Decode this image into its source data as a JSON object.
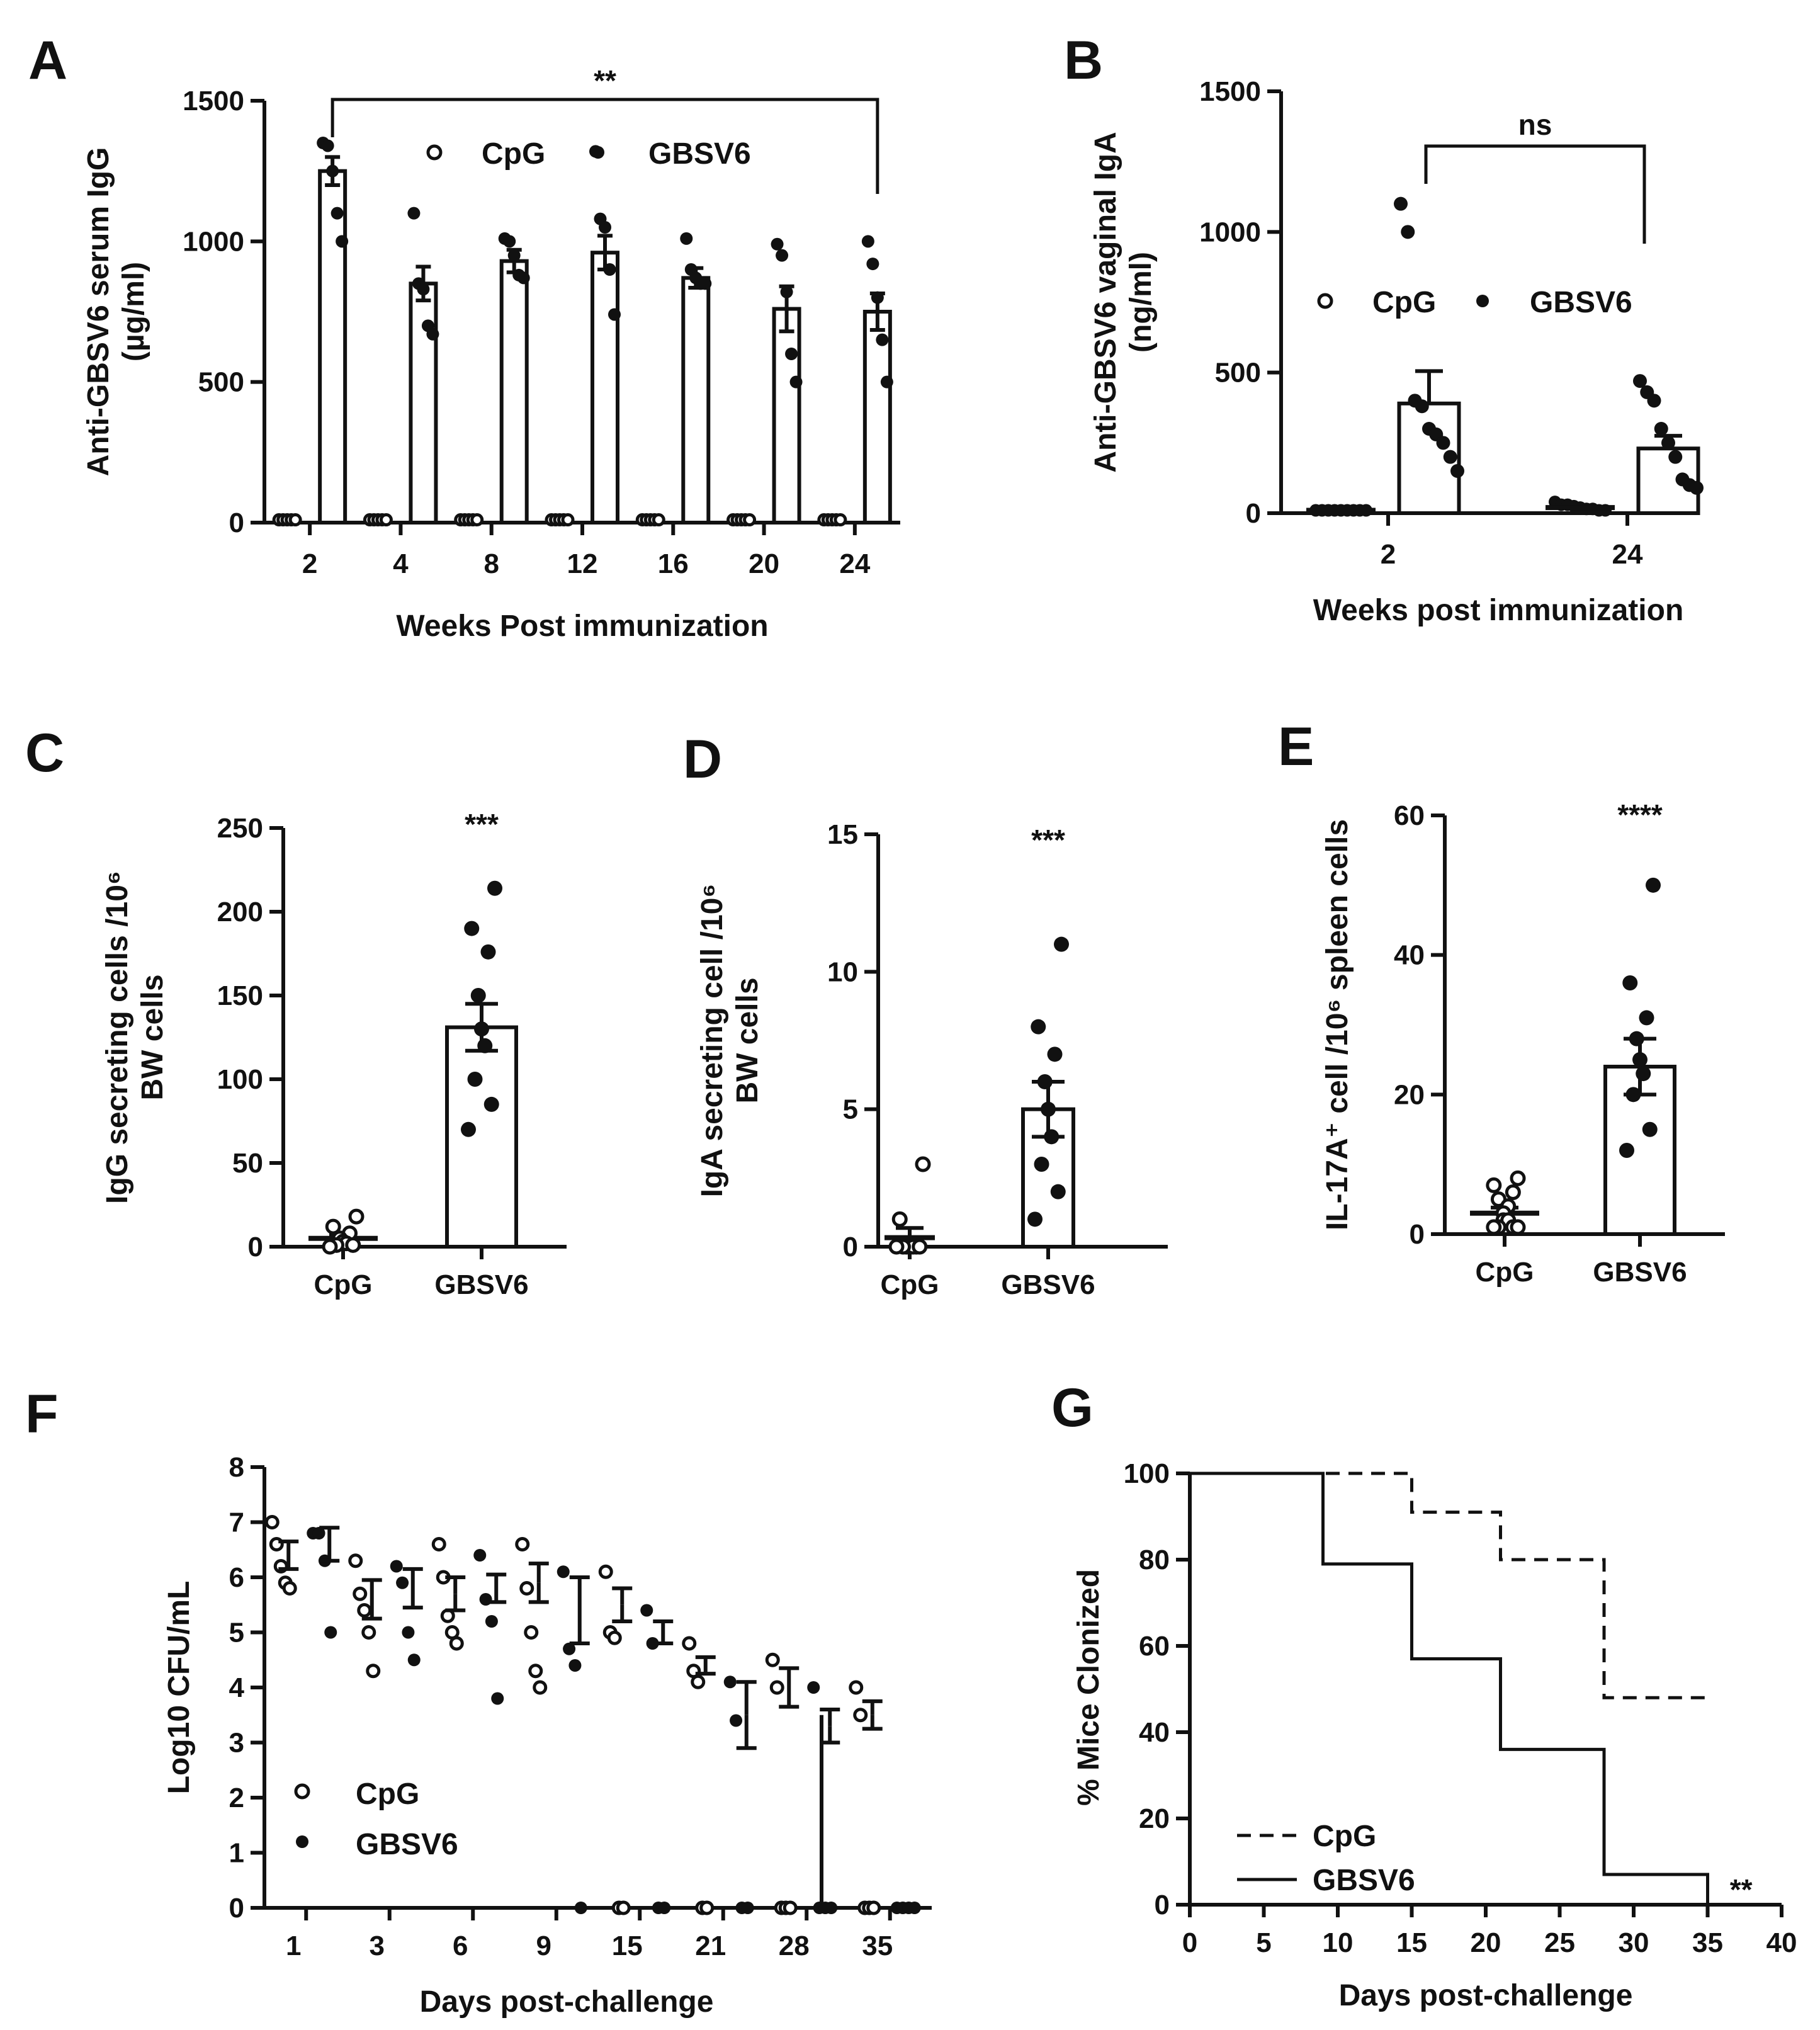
{
  "figure_title": "Multi-panel immunization figure",
  "chart_data": [
    {
      "panel": "A",
      "type": "bar",
      "ylabel": "Anti-GBSV6 serum IgG (µg/ml)",
      "xlabel": "Weeks Post immunization",
      "categories": [
        "2",
        "4",
        "8",
        "12",
        "16",
        "20",
        "24"
      ],
      "ylim": [
        0,
        1500
      ],
      "yticks": [
        0,
        500,
        1000,
        1500
      ],
      "legend": [
        "CpG",
        "GBSV6"
      ],
      "significance": {
        "label": "**",
        "from": "2",
        "to": "24"
      },
      "series": [
        {
          "name": "CpG",
          "values": [
            10,
            10,
            10,
            10,
            10,
            10,
            10
          ],
          "sem": [
            0,
            0,
            0,
            0,
            0,
            0,
            0
          ],
          "points": [
            [
              10,
              10,
              10,
              10,
              10
            ],
            [
              10,
              10,
              10,
              10,
              10
            ],
            [
              10,
              10,
              10,
              10,
              10
            ],
            [
              10,
              10,
              10,
              10,
              10
            ],
            [
              10,
              10,
              10,
              10,
              10
            ],
            [
              10,
              10,
              10,
              10,
              10
            ],
            [
              10,
              10,
              10,
              10,
              10
            ]
          ]
        },
        {
          "name": "GBSV6",
          "values": [
            1250,
            850,
            930,
            960,
            870,
            760,
            750
          ],
          "sem": [
            50,
            60,
            40,
            60,
            35,
            80,
            65
          ],
          "points": [
            [
              1350,
              1340,
              1250,
              1100,
              1000
            ],
            [
              1100,
              850,
              830,
              700,
              670
            ],
            [
              1010,
              1000,
              950,
              880,
              870
            ],
            [
              1320,
              1080,
              1050,
              900,
              740
            ],
            [
              1010,
              900,
              870,
              850,
              850
            ],
            [
              990,
              950,
              820,
              600,
              500
            ],
            [
              1000,
              920,
              800,
              650,
              500
            ]
          ]
        }
      ]
    },
    {
      "panel": "B",
      "type": "bar",
      "ylabel": "Anti-GBSV6 vaginal IgA (ng/ml)",
      "xlabel": "Weeks post immunization",
      "categories": [
        "2",
        "24"
      ],
      "ylim": [
        0,
        1500
      ],
      "yticks": [
        0,
        500,
        1000,
        1500
      ],
      "legend": [
        "CpG",
        "GBSV6"
      ],
      "significance": {
        "label": "ns",
        "from": "2",
        "to": "24"
      },
      "series": [
        {
          "name": "CpG",
          "values": [
            10,
            20
          ],
          "sem": [
            2,
            5
          ],
          "points": [
            [
              10,
              10,
              10,
              10,
              10,
              10,
              10,
              10,
              10
            ],
            [
              40,
              30,
              30,
              25,
              20,
              15,
              15,
              10,
              10
            ]
          ]
        },
        {
          "name": "GBSV6",
          "values": [
            390,
            230
          ],
          "sem": [
            115,
            45
          ],
          "points": [
            [
              1100,
              1000,
              400,
              380,
              300,
              280,
              250,
              200,
              150
            ],
            [
              470,
              430,
              400,
              300,
              250,
              200,
              120,
              100,
              90
            ]
          ]
        }
      ]
    },
    {
      "panel": "C",
      "type": "bar",
      "ylabel": "IgG secreting cells /10^6 BW cells",
      "categories": [
        "CpG",
        "GBSV6"
      ],
      "ylim": [
        0,
        250
      ],
      "yticks": [
        0,
        50,
        100,
        150,
        200,
        250
      ],
      "significance": {
        "label": "***"
      },
      "series": [
        {
          "name": "CpG",
          "values": [
            5,
            131
          ],
          "sem": [
            2,
            14
          ],
          "points": [
            [
              18,
              12,
              8,
              5,
              3,
              2,
              1,
              1,
              0
            ],
            [
              214,
              190,
              176,
              150,
              130,
              120,
              100,
              85,
              70
            ]
          ],
          "markers": [
            "open",
            "filled"
          ]
        }
      ]
    },
    {
      "panel": "D",
      "type": "bar",
      "ylabel": "IgA secreting cell /10^6 BW cells",
      "categories": [
        "CpG",
        "GBSV6"
      ],
      "ylim": [
        0,
        15
      ],
      "yticks": [
        0,
        5,
        10,
        15
      ],
      "significance": {
        "label": "***"
      },
      "series": [
        {
          "name": "CpG",
          "values": [
            0.33,
            5.0
          ],
          "sem": [
            0.35,
            1.0
          ],
          "points": [
            [
              3,
              1,
              0,
              0,
              0,
              0,
              0,
              0,
              0
            ],
            [
              11,
              8,
              7,
              6,
              5,
              4,
              3,
              2,
              1
            ]
          ],
          "markers": [
            "open",
            "filled"
          ]
        }
      ]
    },
    {
      "panel": "E",
      "type": "bar",
      "ylabel": "IL-17A+ cell /10^6 spleen cells",
      "categories": [
        "CpG",
        "GBSV6"
      ],
      "ylim": [
        0,
        60
      ],
      "yticks": [
        0,
        20,
        40,
        60
      ],
      "significance": {
        "label": "****"
      },
      "series": [
        {
          "name": "CpG",
          "values": [
            3,
            24
          ],
          "sem": [
            0.8,
            4
          ],
          "points": [
            [
              8,
              7,
              6,
              5,
              4,
              3,
              2,
              2,
              1,
              1,
              1,
              1
            ],
            [
              50,
              36,
              31,
              28,
              25,
              23,
              20,
              15,
              12
            ]
          ],
          "markers": [
            "open",
            "filled"
          ]
        }
      ]
    },
    {
      "panel": "F",
      "type": "scatter",
      "ylabel": "Log10 CFU/mL",
      "xlabel": "Days post-challenge",
      "categories": [
        "1",
        "3",
        "6",
        "9",
        "15",
        "21",
        "28",
        "35"
      ],
      "ylim": [
        0,
        8
      ],
      "yticks": [
        0,
        1,
        2,
        3,
        4,
        5,
        6,
        7,
        8
      ],
      "legend": [
        "CpG",
        "GBSV6"
      ],
      "series": [
        {
          "name": "CpG",
          "means": [
            6.4,
            5.6,
            5.7,
            5.9,
            5.5,
            4.4,
            4.0,
            3.5
          ],
          "sem": [
            0.25,
            0.35,
            0.3,
            0.35,
            0.3,
            0.15,
            0.35,
            0.25
          ],
          "points": [
            [
              7.0,
              6.6,
              6.2,
              5.9,
              5.8
            ],
            [
              6.3,
              5.7,
              5.4,
              5.0,
              4.3
            ],
            [
              6.6,
              6.0,
              5.3,
              5.0,
              4.8
            ],
            [
              6.6,
              5.8,
              5.0,
              4.3,
              4.0
            ],
            [
              6.1,
              5.0,
              4.9,
              0,
              0
            ],
            [
              4.8,
              4.3,
              4.1,
              0,
              0
            ],
            [
              4.5,
              4.0,
              0,
              0,
              0
            ],
            [
              4.0,
              3.5,
              0,
              0,
              0
            ]
          ]
        },
        {
          "name": "GBSV6",
          "means": [
            6.6,
            5.8,
            5.8,
            5.4,
            5.0,
            3.5,
            3.3,
            0.0
          ],
          "sem": [
            0.3,
            0.35,
            0.25,
            0.6,
            0.2,
            0.6,
            0.3,
            0
          ],
          "points": [
            [
              6.8,
              6.8,
              6.3,
              5.0
            ],
            [
              6.2,
              5.9,
              5.0,
              4.5
            ],
            [
              6.4,
              5.6,
              5.2,
              3.8
            ],
            [
              6.1,
              4.7,
              4.4,
              0
            ],
            [
              5.4,
              4.8,
              0,
              0
            ],
            [
              4.1,
              3.4,
              0,
              0
            ],
            [
              4.0,
              0,
              0,
              0
            ],
            [
              0,
              0,
              0,
              0
            ]
          ]
        }
      ]
    },
    {
      "panel": "G",
      "type": "line",
      "ylabel": "% Mice Clonized",
      "xlabel": "Days post-challenge",
      "xlim": [
        0,
        40
      ],
      "ylim": [
        0,
        100
      ],
      "xticks": [
        0,
        5,
        10,
        15,
        20,
        25,
        30,
        35,
        40
      ],
      "yticks": [
        0,
        20,
        40,
        60,
        80,
        100
      ],
      "legend": [
        "CpG",
        "GBSV6"
      ],
      "significance": {
        "label": "**"
      },
      "series": [
        {
          "name": "CpG",
          "style": "dashed",
          "steps": [
            [
              0,
              100
            ],
            [
              15,
              100
            ],
            [
              15,
              91
            ],
            [
              21,
              91
            ],
            [
              21,
              80
            ],
            [
              28,
              80
            ],
            [
              28,
              48
            ],
            [
              35,
              48
            ]
          ]
        },
        {
          "name": "GBSV6",
          "style": "solid",
          "steps": [
            [
              0,
              100
            ],
            [
              9,
              100
            ],
            [
              9,
              79
            ],
            [
              15,
              79
            ],
            [
              15,
              57
            ],
            [
              21,
              57
            ],
            [
              21,
              36
            ],
            [
              28,
              36
            ],
            [
              28,
              7
            ],
            [
              35,
              7
            ],
            [
              35,
              0
            ]
          ]
        }
      ]
    }
  ]
}
